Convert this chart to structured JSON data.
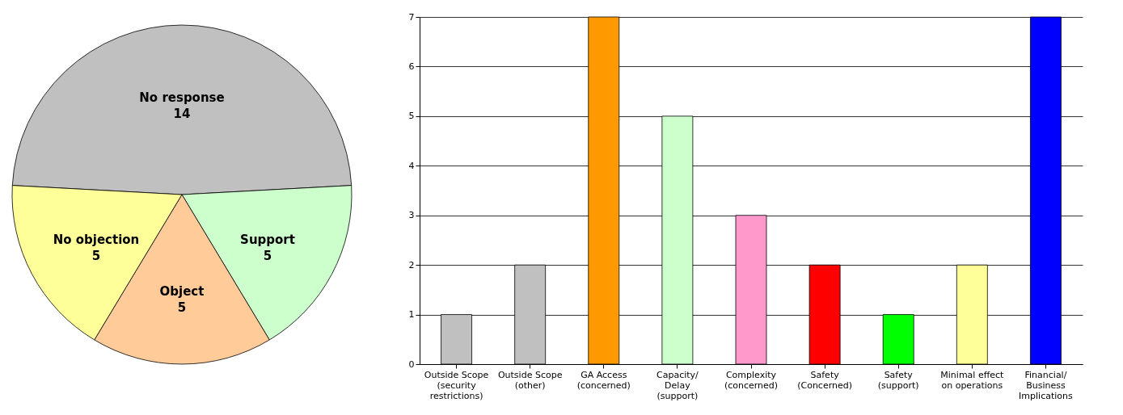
{
  "chart_data": [
    {
      "type": "pie",
      "categories": [
        "No response",
        "Support",
        "Object",
        "No objection"
      ],
      "values": [
        14,
        5,
        5,
        5
      ],
      "colors": [
        "#c0c0c0",
        "#ccffcc",
        "#ffcc99",
        "#ffff99"
      ],
      "data_labels": true,
      "legend": false
    },
    {
      "type": "bar",
      "categories": [
        "Outside Scope (security restrictions)",
        "Outside Scope (other)",
        "GA Access (concerned)",
        "Capacity/ Delay (support)",
        "Complexity (concerned)",
        "Safety (Concerned)",
        "Safety (support)",
        "Minimal effect on operations",
        "Financial/ Business Implications"
      ],
      "values": [
        1,
        2,
        7,
        5,
        3,
        2,
        1,
        2,
        7
      ],
      "colors": [
        "#c0c0c0",
        "#c0c0c0",
        "#ff9900",
        "#ccffcc",
        "#ff99cc",
        "#ff0000",
        "#00ff00",
        "#ffff99",
        "#0000ff"
      ],
      "ylim": [
        0,
        7
      ],
      "yticks": [
        0,
        1,
        2,
        3,
        4,
        5,
        6,
        7
      ],
      "grid": "y"
    }
  ]
}
